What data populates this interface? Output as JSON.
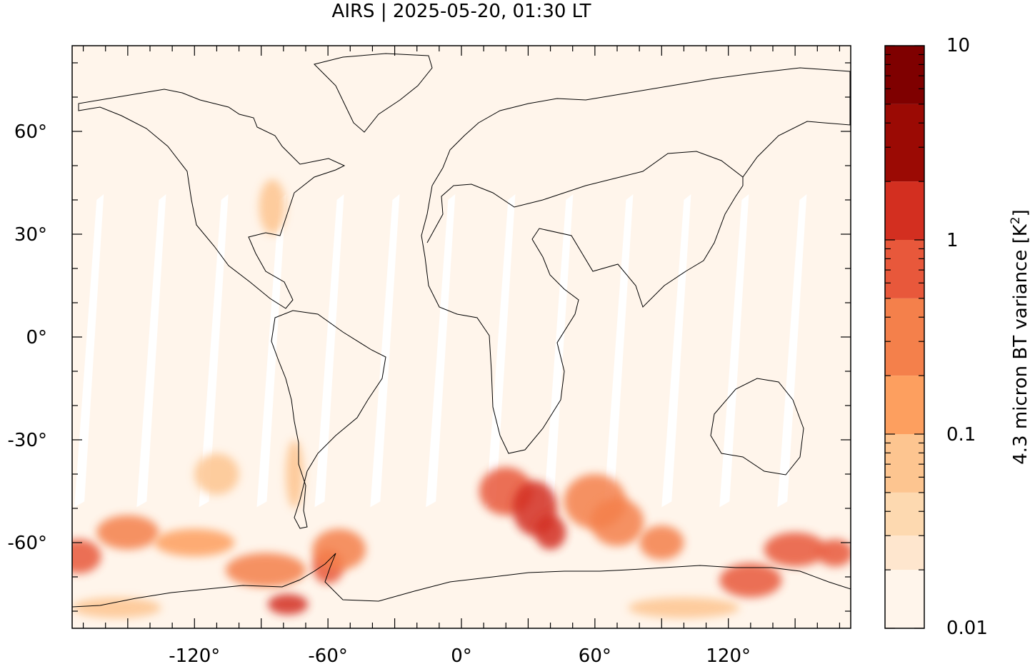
{
  "chart_data": {
    "type": "heatmap",
    "title": "AIRS | 2025-05-20, 01:30 LT",
    "xlabel": "",
    "ylabel": "",
    "x_ticks": [
      -120,
      -60,
      0,
      60,
      120
    ],
    "x_tick_labels": [
      "-120°",
      "-60°",
      "0°",
      "60°",
      "120°"
    ],
    "y_ticks": [
      60,
      30,
      0,
      -30,
      -60
    ],
    "y_tick_labels": [
      "60°",
      "30°",
      "0°",
      "-30°",
      "-60°"
    ],
    "xlim": [
      -175,
      175
    ],
    "ylim": [
      -85,
      85
    ],
    "grid": false,
    "colorbar": {
      "label_main": "4.3 micron BT variance [K",
      "label_sup": "2",
      "label_end": "]",
      "scale": "log",
      "range": [
        0.01,
        10
      ],
      "tick_values": [
        10,
        1,
        0.1,
        0.01
      ],
      "tick_labels": [
        "10",
        "1",
        "0.1",
        "0.01"
      ],
      "levels": [
        0.01,
        0.02,
        0.03,
        0.05,
        0.1,
        0.2,
        0.5,
        1,
        2,
        5,
        10
      ],
      "colors": [
        "#fff5eb",
        "#fee6ce",
        "#fdd9b0",
        "#fdc590",
        "#fd9f5f",
        "#f4804b",
        "#e8583b",
        "#d32f20",
        "#9b0a04",
        "#7f0000"
      ]
    },
    "hotspots": [
      {
        "lon": -172,
        "lat": -64,
        "value": 0.6,
        "rlon": 10,
        "rlat": 5
      },
      {
        "lon": -150,
        "lat": -57,
        "value": 0.3,
        "rlon": 14,
        "rlat": 5
      },
      {
        "lon": -120,
        "lat": -60,
        "value": 0.15,
        "rlon": 18,
        "rlat": 4
      },
      {
        "lon": -88,
        "lat": -68,
        "value": 0.2,
        "rlon": 18,
        "rlat": 5
      },
      {
        "lon": -78,
        "lat": -78,
        "value": 1.0,
        "rlon": 9,
        "rlat": 3
      },
      {
        "lon": -60,
        "lat": -67,
        "value": 0.9,
        "rlon": 7,
        "rlat": 5
      },
      {
        "lon": -55,
        "lat": -62,
        "value": 0.4,
        "rlon": 12,
        "rlat": 6
      },
      {
        "lon": -110,
        "lat": -40,
        "value": 0.05,
        "rlon": 10,
        "rlat": 6
      },
      {
        "lon": 20,
        "lat": -45,
        "value": 0.5,
        "rlon": 12,
        "rlat": 7
      },
      {
        "lon": 33,
        "lat": -50,
        "value": 1.3,
        "rlon": 10,
        "rlat": 8
      },
      {
        "lon": 40,
        "lat": -57,
        "value": 1.8,
        "rlon": 7,
        "rlat": 5
      },
      {
        "lon": 60,
        "lat": -48,
        "value": 0.3,
        "rlon": 14,
        "rlat": 8
      },
      {
        "lon": 70,
        "lat": -54,
        "value": 0.4,
        "rlon": 12,
        "rlat": 7
      },
      {
        "lon": 90,
        "lat": -60,
        "value": 0.4,
        "rlon": 10,
        "rlat": 5
      },
      {
        "lon": 130,
        "lat": -71,
        "value": 0.6,
        "rlon": 14,
        "rlat": 5
      },
      {
        "lon": 150,
        "lat": -62,
        "value": 0.7,
        "rlon": 14,
        "rlat": 5
      },
      {
        "lon": 168,
        "lat": -63,
        "value": 0.5,
        "rlon": 8,
        "rlat": 4
      },
      {
        "lon": -155,
        "lat": -79,
        "value": 0.08,
        "rlon": 20,
        "rlat": 3
      },
      {
        "lon": 100,
        "lat": -79,
        "value": 0.08,
        "rlon": 25,
        "rlat": 3
      },
      {
        "lon": -85,
        "lat": 38,
        "value": 0.05,
        "rlon": 6,
        "rlat": 8
      },
      {
        "lon": -75,
        "lat": -40,
        "value": 0.06,
        "rlon": 4,
        "rlat": 10
      }
    ]
  }
}
